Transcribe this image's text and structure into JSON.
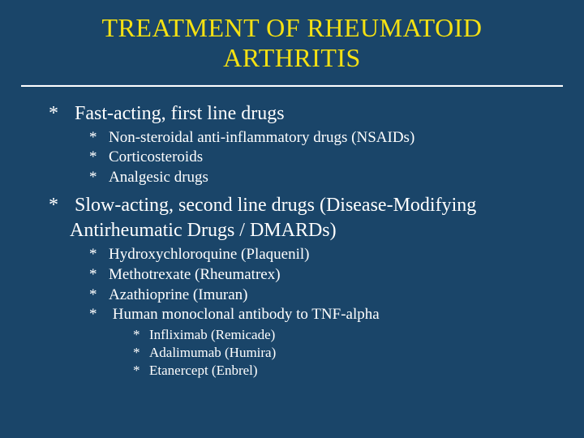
{
  "colors": {
    "background": "#1a4569",
    "title": "#f5e112",
    "body_text": "#ffffff",
    "rule": "#ffffff"
  },
  "typography": {
    "family": "Times New Roman, serif",
    "title_size_pt": 32,
    "lvl1_size_pt": 24,
    "lvl2_size_pt": 19,
    "lvl3_size_pt": 17
  },
  "title": "TREATMENT OF RHEUMATOID ARTHRITIS",
  "bullets": [
    {
      "text": "Fast-acting, first line drugs",
      "children": [
        {
          "text": "Non-steroidal anti-inflammatory drugs (NSAIDs)"
        },
        {
          "text": "Corticosteroids"
        },
        {
          "text": "Analgesic drugs"
        }
      ]
    },
    {
      "text": "Slow-acting, second line drugs (Disease-Modifying Antirheumatic Drugs / DMARDs)",
      "children": [
        {
          "text": "Hydroxychloroquine (Plaquenil)"
        },
        {
          "text": "Methotrexate (Rheumatrex)"
        },
        {
          "text": "Azathioprine (Imuran)"
        },
        {
          "text": "Human monoclonal antibody to TNF-alpha",
          "children": [
            {
              "text": "Infliximab (Remicade)"
            },
            {
              "text": "Adalimumab (Humira)"
            },
            {
              "text": "Etanercept (Enbrel)"
            }
          ]
        }
      ]
    }
  ]
}
